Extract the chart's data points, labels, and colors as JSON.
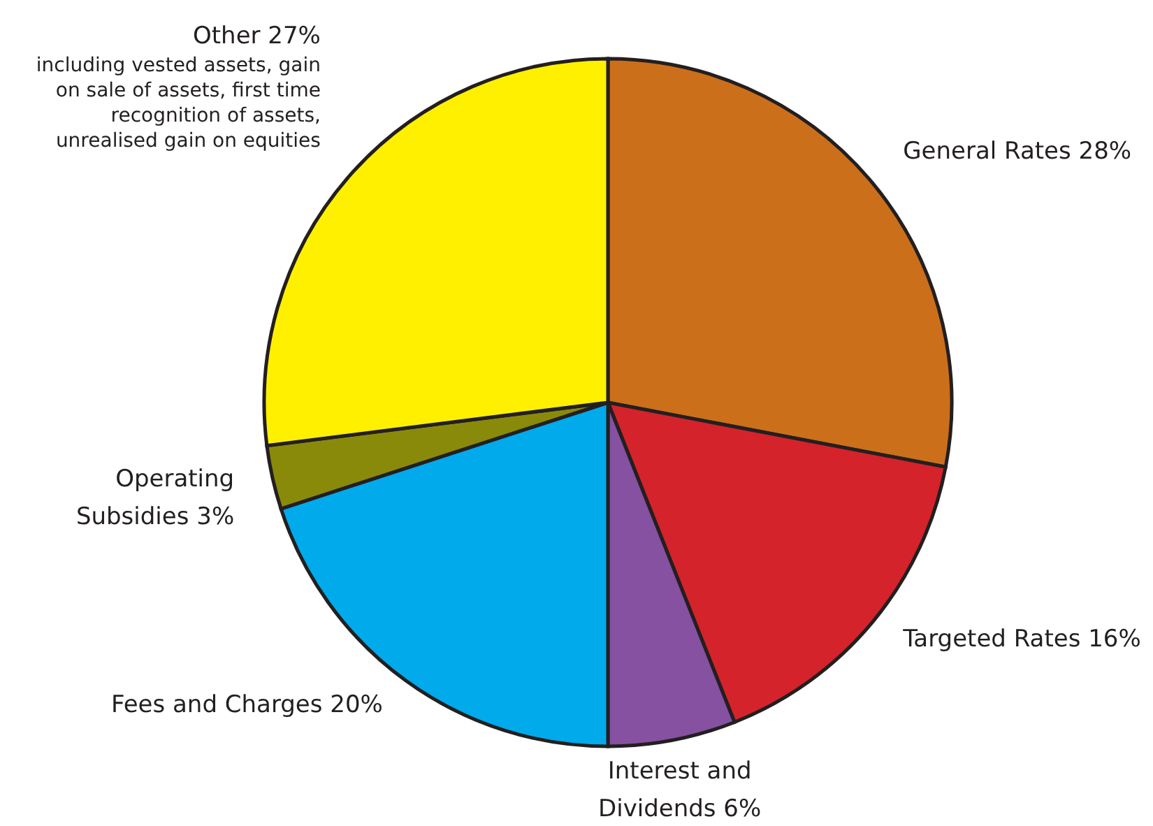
{
  "chart_data": {
    "type": "pie",
    "categories": [
      "General Rates",
      "Targeted Rates",
      "Interest and Dividends",
      "Fees and Charges",
      "Operating Subsidies",
      "Other"
    ],
    "values": [
      28,
      16,
      6,
      20,
      3,
      27
    ],
    "value_labels": [
      "28%",
      "16%",
      "6%",
      "20%",
      "3%",
      "27%"
    ],
    "colors": [
      "#cc6f1a",
      "#d4232b",
      "#8551a0",
      "#00aaeb",
      "#8a8a0a",
      "#fff000"
    ],
    "annotations": [
      {
        "text": "including vested assets, gain on sale of assets, first time recognition of assets, unrealised gain on equities",
        "x": "Other"
      }
    ],
    "legend": false
  }
}
